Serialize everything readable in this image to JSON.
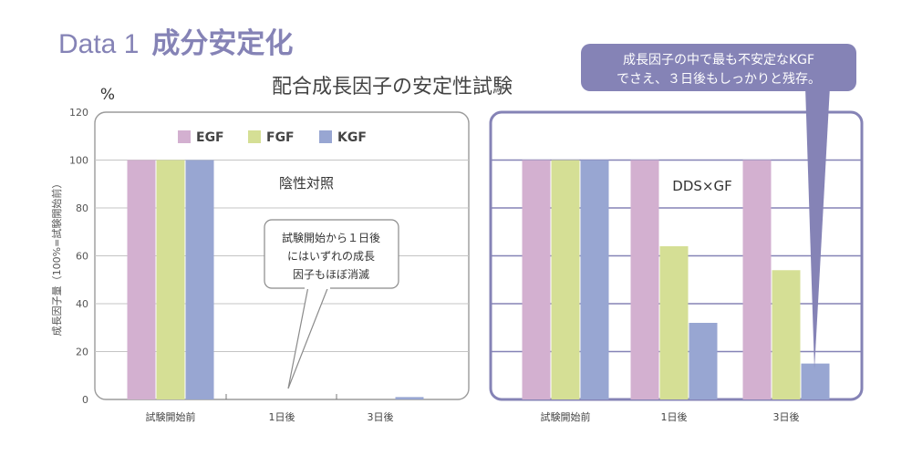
{
  "header": {
    "label": "Data 1",
    "title": "成分安定化"
  },
  "colors": {
    "EGF": "#d3b0d0",
    "FGF": "#d5df95",
    "KGF": "#98a6d2",
    "accent": "#8583b6"
  },
  "chart_data": [
    {
      "type": "bar",
      "title": "配合成長因子の安定性試験",
      "ylabel": "成長因子量（100%=試験開始前）",
      "yunit": "%",
      "ylim": [
        0,
        120
      ],
      "yticks": [
        "0",
        "20",
        "40",
        "60",
        "80",
        "100",
        "120"
      ],
      "grid": true,
      "legend": "top",
      "categories": [
        "試験開始前",
        "1日後",
        "3日後"
      ],
      "series": [
        {
          "name": "EGF",
          "values": [
            100,
            0,
            0
          ]
        },
        {
          "name": "FGF",
          "values": [
            100,
            0,
            0
          ]
        },
        {
          "name": "KGF",
          "values": [
            100,
            0,
            1
          ]
        }
      ],
      "panel_label": "陰性対照",
      "annotation": [
        "試験開始から１日後",
        "にはいずれの成長",
        "因子もほぼ消滅"
      ]
    },
    {
      "type": "bar",
      "ylim": [
        0,
        120
      ],
      "grid": true,
      "categories": [
        "試験開始前",
        "1日後",
        "3日後"
      ],
      "series": [
        {
          "name": "EGF",
          "values": [
            100,
            100,
            100
          ]
        },
        {
          "name": "FGF",
          "values": [
            100,
            64,
            54
          ]
        },
        {
          "name": "KGF",
          "values": [
            100,
            32,
            15
          ]
        }
      ],
      "panel_label": "DDS×GF",
      "annotation": [
        "成長因子の中で最も不安定なKGF",
        "でさえ、３日後もしっかりと残存。"
      ]
    }
  ]
}
